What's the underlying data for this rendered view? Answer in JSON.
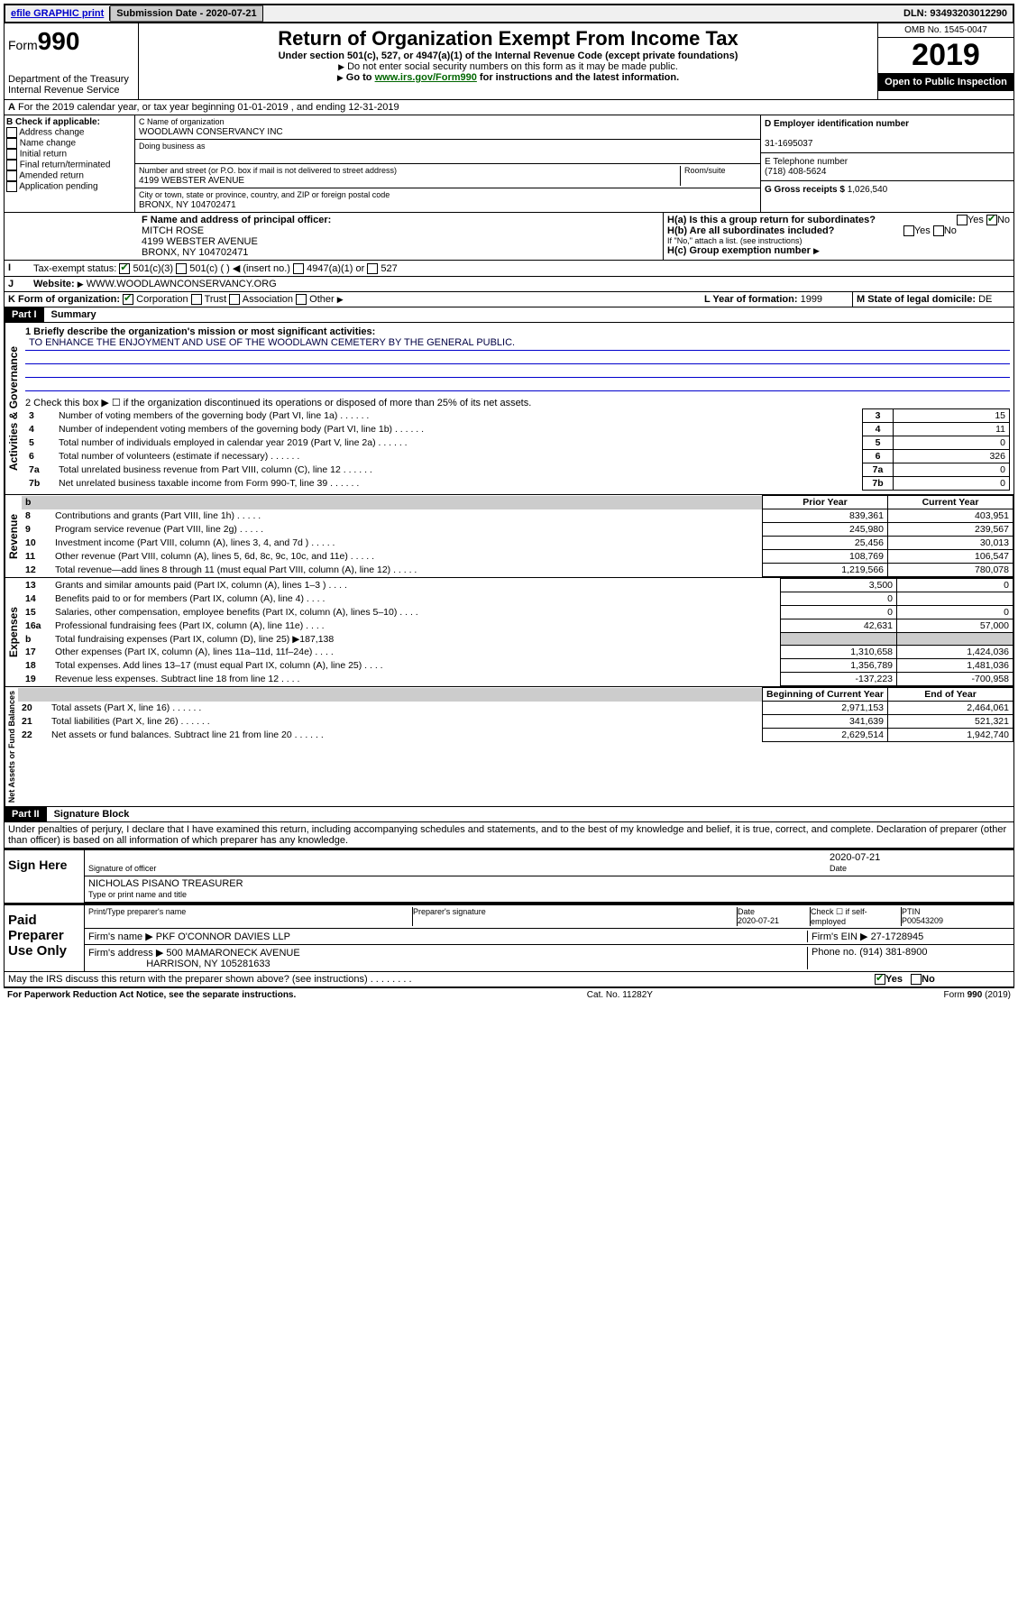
{
  "top": {
    "efile": "efile GRAPHIC print",
    "submission_label": "Submission Date - 2020-07-21",
    "dln": "DLN: 93493203012290"
  },
  "header": {
    "form_prefix": "Form",
    "form_number": "990",
    "dept": "Department of the Treasury",
    "irs": "Internal Revenue Service",
    "title": "Return of Organization Exempt From Income Tax",
    "sub1": "Under section 501(c), 527, or 4947(a)(1) of the Internal Revenue Code (except private foundations)",
    "sub2": "Do not enter social security numbers on this form as it may be made public.",
    "sub3_prefix": "Go to ",
    "sub3_link": "www.irs.gov/Form990",
    "sub3_suffix": " for instructions and the latest information.",
    "omb": "OMB No. 1545-0047",
    "year": "2019",
    "open": "Open to Public Inspection"
  },
  "a_line": "For the 2019 calendar year, or tax year beginning 01-01-2019    , and ending 12-31-2019",
  "b": {
    "title": "B Check if applicable:",
    "opts": [
      "Address change",
      "Name change",
      "Initial return",
      "Final return/terminated",
      "Amended return",
      "Application pending"
    ]
  },
  "c": {
    "name_label": "C Name of organization",
    "name": "WOODLAWN CONSERVANCY INC",
    "dba_label": "Doing business as",
    "addr_label": "Number and street (or P.O. box if mail is not delivered to street address)",
    "room_label": "Room/suite",
    "addr": "4199 WEBSTER AVENUE",
    "city_label": "City or town, state or province, country, and ZIP or foreign postal code",
    "city": "BRONX, NY  104702471"
  },
  "d": {
    "label": "D Employer identification number",
    "value": "31-1695037"
  },
  "e": {
    "label": "E Telephone number",
    "value": "(718) 408-5624"
  },
  "g": {
    "label": "G Gross receipts $",
    "value": "1,026,540"
  },
  "f": {
    "label": "F Name and address of principal officer:",
    "name": "MITCH ROSE",
    "addr1": "4199 WEBSTER AVENUE",
    "addr2": "BRONX, NY  104702471"
  },
  "h": {
    "a": "H(a)  Is this a group return for subordinates?",
    "b": "H(b)  Are all subordinates included?",
    "note": "If \"No,\" attach a list. (see instructions)",
    "c": "H(c)  Group exemption number"
  },
  "i": {
    "label": "Tax-exempt status:",
    "opts": [
      "501(c)(3)",
      "501(c) (  ) ◀ (insert no.)",
      "4947(a)(1) or",
      "527"
    ]
  },
  "j": {
    "label": "Website:",
    "value": "WWW.WOODLAWNCONSERVANCY.ORG"
  },
  "k": {
    "label": "K Form of organization:",
    "opts": [
      "Corporation",
      "Trust",
      "Association",
      "Other"
    ]
  },
  "l": {
    "label": "L Year of formation:",
    "value": "1999"
  },
  "m": {
    "label": "M State of legal domicile:",
    "value": "DE"
  },
  "part1": {
    "label": "Part I",
    "title": "Summary"
  },
  "mission_label": "1   Briefly describe the organization's mission or most significant activities:",
  "mission": "TO ENHANCE THE ENJOYMENT AND USE OF THE WOODLAWN CEMETERY BY THE GENERAL PUBLIC.",
  "line2": "2   Check this box ▶ ☐ if the organization discontinued its operations or disposed of more than 25% of its net assets.",
  "governance_lines": [
    {
      "n": "3",
      "t": "Number of voting members of the governing body (Part VI, line 1a)",
      "v": "15"
    },
    {
      "n": "4",
      "t": "Number of independent voting members of the governing body (Part VI, line 1b)",
      "v": "11"
    },
    {
      "n": "5",
      "t": "Total number of individuals employed in calendar year 2019 (Part V, line 2a)",
      "v": "0"
    },
    {
      "n": "6",
      "t": "Total number of volunteers (estimate if necessary)",
      "v": "326"
    },
    {
      "n": "7a",
      "t": "Total unrelated business revenue from Part VIII, column (C), line 12",
      "v": "0"
    },
    {
      "n": "7b",
      "t": "Net unrelated business taxable income from Form 990-T, line 39",
      "v": "0"
    }
  ],
  "col_headers": {
    "prior": "Prior Year",
    "current": "Current Year"
  },
  "revenue_lines": [
    {
      "n": "8",
      "t": "Contributions and grants (Part VIII, line 1h)",
      "p": "839,361",
      "c": "403,951"
    },
    {
      "n": "9",
      "t": "Program service revenue (Part VIII, line 2g)",
      "p": "245,980",
      "c": "239,567"
    },
    {
      "n": "10",
      "t": "Investment income (Part VIII, column (A), lines 3, 4, and 7d )",
      "p": "25,456",
      "c": "30,013"
    },
    {
      "n": "11",
      "t": "Other revenue (Part VIII, column (A), lines 5, 6d, 8c, 9c, 10c, and 11e)",
      "p": "108,769",
      "c": "106,547"
    },
    {
      "n": "12",
      "t": "Total revenue—add lines 8 through 11 (must equal Part VIII, column (A), line 12)",
      "p": "1,219,566",
      "c": "780,078"
    }
  ],
  "expense_lines": [
    {
      "n": "13",
      "t": "Grants and similar amounts paid (Part IX, column (A), lines 1–3 )",
      "p": "3,500",
      "c": "0"
    },
    {
      "n": "14",
      "t": "Benefits paid to or for members (Part IX, column (A), line 4)",
      "p": "0",
      "c": ""
    },
    {
      "n": "15",
      "t": "Salaries, other compensation, employee benefits (Part IX, column (A), lines 5–10)",
      "p": "0",
      "c": "0"
    },
    {
      "n": "16a",
      "t": "Professional fundraising fees (Part IX, column (A), line 11e)",
      "p": "42,631",
      "c": "57,000"
    },
    {
      "n": "b",
      "t": "Total fundraising expenses (Part IX, column (D), line 25) ▶187,138",
      "p": "",
      "c": "",
      "shaded": true
    },
    {
      "n": "17",
      "t": "Other expenses (Part IX, column (A), lines 11a–11d, 11f–24e)",
      "p": "1,310,658",
      "c": "1,424,036"
    },
    {
      "n": "18",
      "t": "Total expenses. Add lines 13–17 (must equal Part IX, column (A), line 25)",
      "p": "1,356,789",
      "c": "1,481,036"
    },
    {
      "n": "19",
      "t": "Revenue less expenses. Subtract line 18 from line 12",
      "p": "-137,223",
      "c": "-700,958"
    }
  ],
  "balance_headers": {
    "begin": "Beginning of Current Year",
    "end": "End of Year"
  },
  "balance_lines": [
    {
      "n": "20",
      "t": "Total assets (Part X, line 16)",
      "p": "2,971,153",
      "c": "2,464,061"
    },
    {
      "n": "21",
      "t": "Total liabilities (Part X, line 26)",
      "p": "341,639",
      "c": "521,321"
    },
    {
      "n": "22",
      "t": "Net assets or fund balances. Subtract line 21 from line 20",
      "p": "2,629,514",
      "c": "1,942,740"
    }
  ],
  "part2": {
    "label": "Part II",
    "title": "Signature Block"
  },
  "perjury": "Under penalties of perjury, I declare that I have examined this return, including accompanying schedules and statements, and to the best of my knowledge and belief, it is true, correct, and complete. Declaration of preparer (other than officer) is based on all information of which preparer has any knowledge.",
  "sign": {
    "here": "Sign Here",
    "sig_label": "Signature of officer",
    "date": "2020-07-21",
    "date_label": "Date",
    "name": "NICHOLAS PISANO  TREASURER",
    "name_label": "Type or print name and title"
  },
  "paid": {
    "title": "Paid Preparer Use Only",
    "h1": "Print/Type preparer's name",
    "h2": "Preparer's signature",
    "h3": "Date",
    "h3v": "2020-07-21",
    "h4": "Check ☐ if self-employed",
    "h5": "PTIN",
    "h5v": "P00543209",
    "firm_label": "Firm's name     ▶",
    "firm": "PKF O'CONNOR DAVIES LLP",
    "ein_label": "Firm's EIN ▶",
    "ein": "27-1728945",
    "addr_label": "Firm's address ▶",
    "addr1": "500 MAMARONECK AVENUE",
    "addr2": "HARRISON, NY  105281633",
    "phone_label": "Phone no.",
    "phone": "(914) 381-8900"
  },
  "discuss": "May the IRS discuss this return with the preparer shown above? (see instructions)",
  "footer": {
    "left": "For Paperwork Reduction Act Notice, see the separate instructions.",
    "mid": "Cat. No. 11282Y",
    "right": "Form 990 (2019)"
  },
  "side_labels": {
    "gov": "Activities & Governance",
    "rev": "Revenue",
    "exp": "Expenses",
    "net": "Net Assets or Fund Balances"
  }
}
